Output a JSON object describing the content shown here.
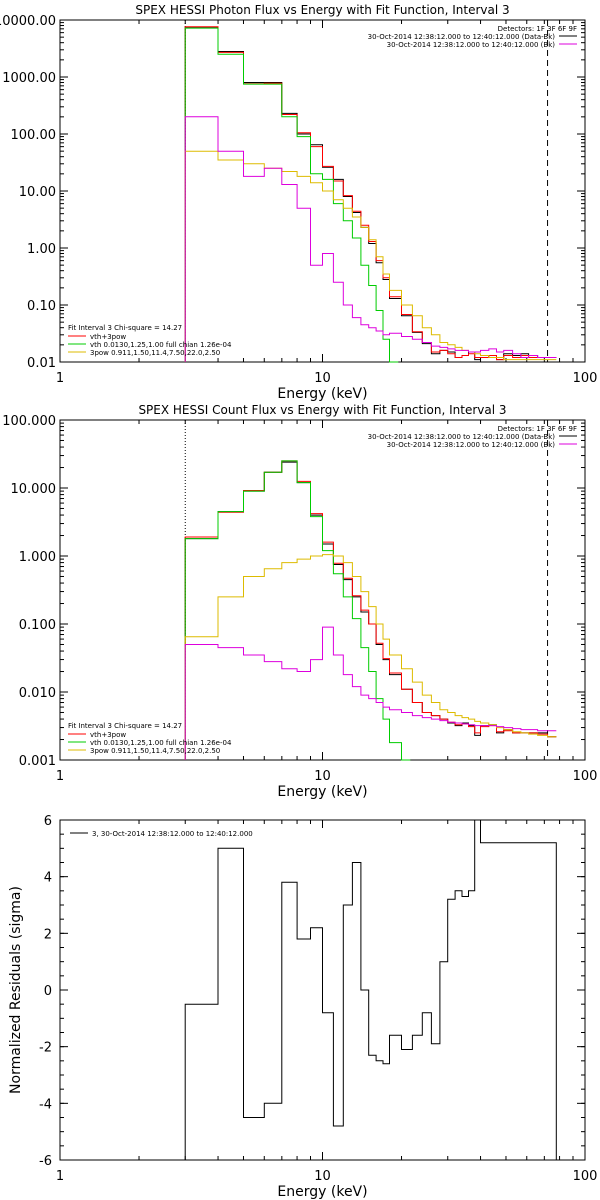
{
  "chart_data": [
    {
      "type": "line",
      "title": "SPEX HESSI Photon Flux vs Energy with Fit Function, Interval 3",
      "xlabel": "Energy (keV)",
      "ylabel": "",
      "xscale": "log",
      "yscale": "log",
      "xlim": [
        1,
        100
      ],
      "ylim": [
        0.01,
        10000
      ],
      "xticks": [
        "1",
        "10",
        "100"
      ],
      "yticks": [
        "0.01",
        "0.10",
        "1.00",
        "10.00",
        "100.00",
        "1000.00",
        "10000.00"
      ],
      "legend_right": {
        "header": "Detectors: 1F 3F 6F 9F",
        "lines": [
          "30-Oct-2014 12:38:12.000 to 12:40:12.000 (Data-Bk)",
          "30-Oct-2014 12:38:12.000 to 12:40:12.000 (Bk)"
        ]
      },
      "legend_left": {
        "header": "Fit Interval 3   Chi-square = 14.27",
        "lines": [
          "vth+3pow",
          "vth 0.0130,1.25,1.00  full chian 1.26e-04",
          "3pow 0.911,1.50,11.4,7.50,22.0,2.50"
        ]
      },
      "vlines": [
        {
          "x": 3,
          "style": "dotted"
        },
        {
          "x": 72,
          "style": "dashed"
        }
      ],
      "series": [
        {
          "color": "#000000",
          "x": [
            3,
            4,
            5,
            6,
            7,
            8,
            9,
            10,
            11,
            12,
            13,
            14,
            15,
            16,
            17,
            18,
            20,
            22,
            24,
            26,
            28,
            30,
            32,
            34,
            36,
            38,
            40,
            43,
            46,
            49,
            53,
            57,
            61,
            66,
            72
          ],
          "values": [
            7500,
            2800,
            800,
            800,
            230,
            100,
            65,
            26,
            16,
            8,
            4.2,
            2.3,
            1.2,
            0.55,
            0.28,
            0.13,
            0.065,
            0.033,
            0.021,
            0.014,
            0.016,
            0.015,
            0.012,
            0.013,
            0.015,
            0.011,
            0.012,
            0.013,
            0.011,
            0.014,
            0.013,
            0.014,
            0.013,
            0.012,
            0.012
          ]
        },
        {
          "color": "#ff0000",
          "x": [
            3,
            4,
            5,
            6,
            7,
            8,
            9,
            10,
            11,
            12,
            13,
            14,
            15,
            16,
            17,
            18,
            20,
            22,
            24,
            26,
            28,
            30,
            32,
            34,
            36,
            38,
            40,
            43,
            46,
            49,
            53,
            57,
            61,
            66,
            72
          ],
          "values": [
            7600,
            2700,
            760,
            780,
            220,
            105,
            60,
            27,
            15,
            8.3,
            4.4,
            2.5,
            1.3,
            0.6,
            0.3,
            0.14,
            0.068,
            0.034,
            0.022,
            0.015,
            0.016,
            0.014,
            0.012,
            0.013,
            0.014,
            0.012,
            0.012,
            0.013,
            0.011,
            0.013,
            0.012,
            0.013,
            0.012,
            0.012,
            0.012
          ]
        },
        {
          "color": "#00cc00",
          "x": [
            3,
            4,
            5,
            6,
            7,
            8,
            9,
            10,
            11,
            12,
            13,
            14,
            15,
            16,
            17,
            18
          ],
          "values": [
            7200,
            2500,
            750,
            750,
            200,
            90,
            20,
            16,
            6,
            3,
            1.5,
            0.5,
            0.22,
            0.08,
            0.025,
            0.01
          ]
        },
        {
          "color": "#ddbb00",
          "x": [
            3,
            4,
            5,
            6,
            7,
            8,
            9,
            10,
            11,
            12,
            13,
            14,
            15,
            16,
            17,
            18,
            20,
            22,
            24,
            26,
            28,
            30,
            32,
            34,
            36,
            38,
            40,
            43,
            46,
            49,
            53,
            57,
            61,
            66,
            72
          ],
          "values": [
            50,
            35,
            30,
            25,
            22,
            18,
            14,
            10,
            7,
            5,
            3.5,
            2.3,
            1.4,
            0.7,
            0.35,
            0.18,
            0.1,
            0.065,
            0.04,
            0.03,
            0.022,
            0.02,
            0.018,
            0.016,
            0.015,
            0.014,
            0.013,
            0.012,
            0.012,
            0.011,
            0.011,
            0.011,
            0.011,
            0.011,
            0.011
          ]
        },
        {
          "color": "#dd00dd",
          "x": [
            3,
            4,
            5,
            6,
            7,
            8,
            9,
            10,
            11,
            12,
            13,
            14,
            15,
            16,
            17,
            18,
            20,
            22,
            24,
            26,
            28,
            30,
            32,
            34,
            36,
            38,
            40,
            43,
            46,
            49,
            53,
            57,
            61,
            66,
            72
          ],
          "values": [
            200,
            50,
            18,
            25,
            13,
            5,
            0.5,
            0.8,
            0.25,
            0.1,
            0.06,
            0.045,
            0.04,
            0.035,
            0.03,
            0.032,
            0.028,
            0.025,
            0.022,
            0.019,
            0.018,
            0.017,
            0.016,
            0.016,
            0.015,
            0.015,
            0.016,
            0.017,
            0.015,
            0.016,
            0.014,
            0.012,
            0.013,
            0.012,
            0.012
          ]
        }
      ]
    },
    {
      "type": "line",
      "title": "SPEX HESSI Count Flux vs Energy with Fit Function, Interval 3",
      "xlabel": "Energy (keV)",
      "ylabel": "",
      "xscale": "log",
      "yscale": "log",
      "xlim": [
        1,
        100
      ],
      "ylim": [
        0.001,
        100
      ],
      "xticks": [
        "1",
        "10",
        "100"
      ],
      "yticks": [
        "0.001",
        "0.010",
        "0.100",
        "1.000",
        "10.000",
        "100.000"
      ],
      "legend_right": {
        "header": "Detectors: 1F 3F 6F 9F",
        "lines": [
          "30-Oct-2014 12:38:12.000 to 12:40:12.000 (Data-Bk)",
          "30-Oct-2014 12:38:12.000 to 12:40:12.000 (Bk)"
        ]
      },
      "legend_left": {
        "header": "Fit Interval 3   Chi-square = 14.27",
        "lines": [
          "vth+3pow",
          "vth 0.0130,1.25,1.00  full chian 1.26e-04",
          "3pow 0.911,1.50,11.4,7.50,22.0,2.50"
        ]
      },
      "vlines": [
        {
          "x": 3,
          "style": "dotted"
        },
        {
          "x": 72,
          "style": "dashed"
        }
      ],
      "series": [
        {
          "color": "#000000",
          "x": [
            3,
            4,
            5,
            6,
            7,
            8,
            9,
            10,
            11,
            12,
            13,
            14,
            15,
            16,
            17,
            18,
            20,
            22,
            24,
            26,
            28,
            30,
            32,
            34,
            36,
            38,
            40,
            43,
            46,
            49,
            53,
            57,
            61,
            66,
            72
          ],
          "values": [
            1.8,
            4.5,
            9,
            17,
            24,
            12,
            4,
            1.5,
            0.75,
            0.45,
            0.25,
            0.15,
            0.1,
            0.05,
            0.03,
            0.018,
            0.011,
            0.007,
            0.005,
            0.0045,
            0.004,
            0.0035,
            0.0032,
            0.0035,
            0.0032,
            0.0023,
            0.0032,
            0.0033,
            0.0025,
            0.0028,
            0.0025,
            0.0025,
            0.0025,
            0.0025,
            0.0022
          ]
        },
        {
          "color": "#ff0000",
          "x": [
            3,
            4,
            5,
            6,
            7,
            8,
            9,
            10,
            11,
            12,
            13,
            14,
            15,
            16,
            17,
            18,
            20,
            22,
            24,
            26,
            28,
            30,
            32,
            34,
            36,
            38,
            40,
            43,
            46,
            49,
            53,
            57,
            61,
            66,
            72
          ],
          "values": [
            1.9,
            4.4,
            9.2,
            17,
            25,
            12.5,
            4.2,
            1.6,
            0.78,
            0.47,
            0.26,
            0.16,
            0.1,
            0.052,
            0.031,
            0.019,
            0.011,
            0.007,
            0.005,
            0.0045,
            0.004,
            0.0036,
            0.0033,
            0.0034,
            0.0031,
            0.0025,
            0.0031,
            0.0032,
            0.0026,
            0.0027,
            0.0025,
            0.0025,
            0.0025,
            0.0024,
            0.0022
          ]
        },
        {
          "color": "#00cc00",
          "x": [
            3,
            4,
            5,
            6,
            7,
            8,
            9,
            10,
            11,
            12,
            13,
            14,
            15,
            16,
            17,
            18,
            20
          ],
          "values": [
            1.8,
            4.5,
            9,
            17,
            25,
            12,
            3.8,
            1.2,
            0.55,
            0.25,
            0.12,
            0.045,
            0.02,
            0.008,
            0.004,
            0.0018,
            0.001
          ]
        },
        {
          "color": "#ddbb00",
          "x": [
            3,
            4,
            5,
            6,
            7,
            8,
            9,
            10,
            11,
            12,
            13,
            14,
            15,
            16,
            17,
            18,
            20,
            22,
            24,
            26,
            28,
            30,
            32,
            34,
            36,
            38,
            40,
            43,
            46,
            49,
            53,
            57,
            61,
            66,
            72
          ],
          "values": [
            0.065,
            0.25,
            0.5,
            0.65,
            0.8,
            0.9,
            1.0,
            1.05,
            1.0,
            0.8,
            0.5,
            0.3,
            0.18,
            0.1,
            0.06,
            0.035,
            0.022,
            0.014,
            0.009,
            0.007,
            0.0055,
            0.005,
            0.0045,
            0.0042,
            0.004,
            0.0037,
            0.0035,
            0.0033,
            0.003,
            0.0028,
            0.0026,
            0.0025,
            0.0024,
            0.0023,
            0.0022
          ]
        },
        {
          "color": "#dd00dd",
          "x": [
            3,
            4,
            5,
            6,
            7,
            8,
            9,
            10,
            11,
            12,
            13,
            14,
            15,
            16,
            17,
            18,
            20,
            22,
            24,
            26,
            28,
            30,
            32,
            34,
            36,
            38,
            40,
            43,
            46,
            49,
            53,
            57,
            61,
            66,
            72
          ],
          "values": [
            0.05,
            0.045,
            0.035,
            0.028,
            0.022,
            0.02,
            0.03,
            0.09,
            0.035,
            0.018,
            0.012,
            0.009,
            0.008,
            0.007,
            0.006,
            0.0055,
            0.005,
            0.0045,
            0.0042,
            0.004,
            0.0038,
            0.0036,
            0.0035,
            0.0034,
            0.0033,
            0.0032,
            0.0032,
            0.0032,
            0.0031,
            0.003,
            0.0029,
            0.0028,
            0.0028,
            0.0027,
            0.0027
          ]
        }
      ]
    },
    {
      "type": "line",
      "title": "",
      "xlabel": "Energy (keV)",
      "ylabel": "Normalized Residuals (sigma)",
      "xscale": "log",
      "yscale": "linear",
      "xlim": [
        1,
        100
      ],
      "ylim": [
        -6,
        6
      ],
      "xticks": [
        "1",
        "10",
        "100"
      ],
      "yticks": [
        "-6",
        "-4",
        "-2",
        "0",
        "2",
        "4",
        "6"
      ],
      "legend": {
        "lines": [
          "3, 30-Oct-2014 12:38:12.000 to 12:40:12.000"
        ]
      },
      "series": [
        {
          "color": "#000000",
          "x": [
            3,
            4,
            5,
            6,
            7,
            8,
            9,
            10,
            11,
            12,
            13,
            14,
            15,
            16,
            17,
            18,
            20,
            22,
            24,
            26,
            28,
            30,
            32,
            34,
            36,
            38,
            40,
            43,
            46,
            49,
            53,
            57,
            61,
            66,
            72
          ],
          "values": [
            -0.5,
            5.0,
            -4.5,
            -4.0,
            3.8,
            1.8,
            2.2,
            -0.8,
            -4.8,
            3.0,
            4.5,
            0.0,
            -2.3,
            -2.5,
            -2.6,
            -1.6,
            -2.1,
            -1.6,
            -0.8,
            -1.9,
            1.0,
            3.2,
            3.5,
            3.3,
            3.5,
            6.0,
            5.2,
            5.2,
            5.2,
            5.2,
            5.2,
            5.2,
            5.2,
            5.2,
            5.2
          ]
        }
      ]
    }
  ]
}
